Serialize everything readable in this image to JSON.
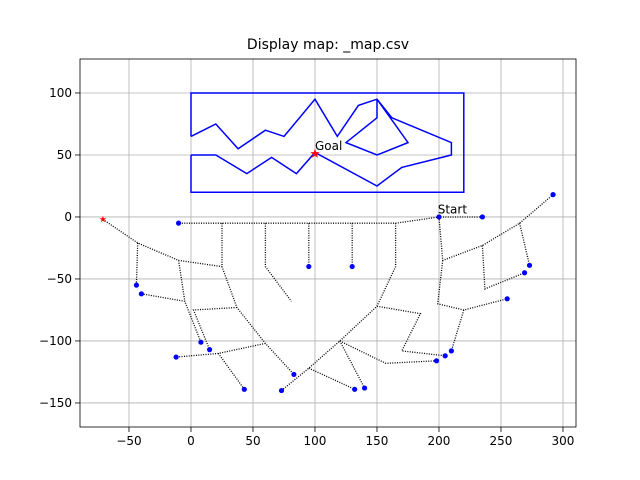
{
  "chart_data": {
    "type": "line",
    "title": "Display map: _map.csv",
    "xlim": [
      -89.5,
      310.5
    ],
    "ylim": [
      -169.4,
      127.4
    ],
    "xticks": [
      {
        "value": -50,
        "label": "−50"
      },
      0,
      50,
      100,
      150,
      200,
      250,
      300
    ],
    "yticks": [
      {
        "value": -150,
        "label": "−150"
      },
      {
        "value": -100,
        "label": "−100"
      },
      {
        "value": -50,
        "label": "−50"
      },
      0,
      50,
      100
    ],
    "grid": true,
    "series": [
      {
        "color": "#0000ff",
        "style": "solid",
        "x": [
          0,
          0,
          220,
          220,
          0,
          0,
          null,
          0,
          20,
          38,
          60,
          75,
          100,
          118,
          135,
          150,
          162,
          210,
          210,
          170,
          150,
          100,
          85,
          65,
          45,
          20,
          0,
          null,
          150,
          175,
          150,
          125,
          150,
          150
        ],
        "y": [
          65,
          100,
          100,
          20,
          20,
          50,
          null,
          65,
          75,
          55,
          70,
          65,
          95,
          65,
          90,
          95,
          80,
          60,
          50,
          40,
          25,
          52,
          35,
          48,
          35,
          50,
          50,
          null,
          95,
          60,
          50,
          60,
          80,
          95
        ]
      },
      {
        "color": "#000000",
        "style": "dotted",
        "x": [
          235,
          200,
          165,
          -10,
          null,
          25,
          25,
          37,
          60,
          83,
          null,
          60,
          60,
          81,
          null,
          95,
          95,
          null,
          130,
          130,
          null,
          165,
          165,
          150,
          120,
          95,
          73,
          null,
          95,
          132,
          null,
          120,
          140,
          null,
          -71,
          -43,
          -10,
          25,
          null,
          -43,
          -44,
          null,
          -40,
          -5,
          8,
          null,
          -10,
          -5,
          null,
          37,
          2,
          15,
          null,
          60,
          22,
          -12,
          null,
          22,
          43,
          null,
          200,
          203,
          235,
          265,
          292,
          null,
          265,
          273,
          null,
          235,
          237,
          269,
          null,
          203,
          199,
          220,
          255,
          null,
          220,
          210,
          null,
          150,
          185,
          170,
          205,
          null,
          120,
          157,
          198
        ],
        "y": [
          0,
          0,
          -5,
          -5,
          null,
          -5,
          -40,
          -73,
          -102,
          -127,
          null,
          -5,
          -40,
          -68,
          null,
          -5,
          -40,
          null,
          -5,
          -40,
          null,
          -5,
          -40,
          -72,
          -100,
          -122,
          -140,
          null,
          -122,
          -139,
          null,
          -100,
          -138,
          null,
          -2,
          -21,
          -35,
          -40,
          null,
          -21,
          -55,
          null,
          -62,
          -68,
          -101,
          null,
          -35,
          -68,
          null,
          -73,
          -75,
          -107,
          null,
          -102,
          -110,
          -113,
          null,
          -110,
          -139,
          null,
          0,
          -35,
          -23,
          -5,
          18,
          null,
          -5,
          -39,
          null,
          -23,
          -58,
          -45,
          null,
          -35,
          -70,
          -75,
          -66,
          null,
          -75,
          -108,
          null,
          -72,
          -78,
          -108,
          -112,
          null,
          -100,
          -118,
          -116
        ]
      },
      {
        "color": "#0000ff",
        "style": "dot",
        "x": [
          -10,
          95,
          130,
          235,
          200,
          292,
          273,
          269,
          255,
          210,
          205,
          198,
          140,
          132,
          83,
          73,
          43,
          15,
          8,
          -12,
          -40,
          -44
        ],
        "y": [
          -5,
          -40,
          -40,
          0,
          0,
          18,
          -39,
          -45,
          -66,
          -108,
          -112,
          -116,
          -138,
          -139,
          -127,
          -140,
          -139,
          -107,
          -101,
          -113,
          -62,
          -55
        ]
      },
      {
        "color": "#ff0000",
        "style": "star",
        "x": [
          100,
          -71
        ],
        "y": [
          51,
          -2
        ]
      }
    ],
    "annotations": [
      {
        "text": "Start",
        "x": 199,
        "y": 2
      },
      {
        "text": "Goal",
        "x": 100,
        "y": 53
      }
    ]
  }
}
